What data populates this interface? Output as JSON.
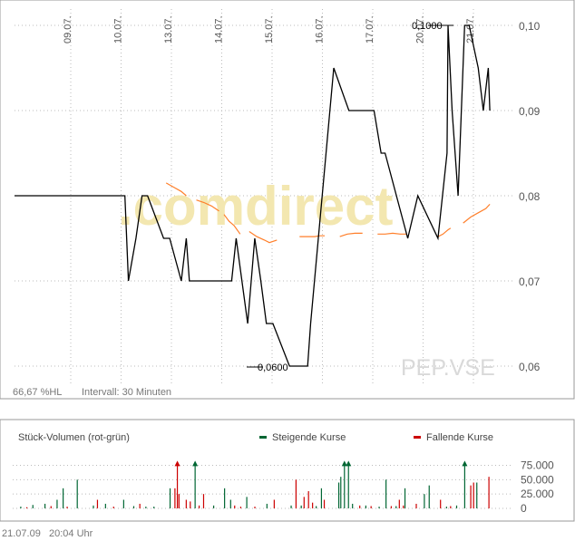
{
  "colors": {
    "price": "#000000",
    "average": "#ff7f2a",
    "volume_up": "#006633",
    "volume_down": "#cc0000",
    "grid": "#bbbbbb",
    "frame": "#999999",
    "watermark": "#e8e8e8",
    "watermark_accent": "#f5e6a0"
  },
  "watermark": {
    "brand": ".comdirect",
    "symbol": "PEP.VSE"
  },
  "footer": {
    "date": "21.07.09",
    "time": "20:04 Uhr"
  },
  "chart_data": [
    {
      "type": "line",
      "x_tick_labels": [
        "09.07.",
        "10.07.",
        "13.07.",
        "14.07.",
        "15.07.",
        "16.07.",
        "17.07.",
        "20.07.",
        "21.07."
      ],
      "y_tick_labels": [
        "0,10",
        "0,09",
        "0,08",
        "0,07",
        "0,06"
      ],
      "ylim": [
        0.06,
        0.1
      ],
      "grid": true,
      "max_label": "0,1000",
      "min_label": "0,0600",
      "info_left": "66,67 %HL",
      "info_interval": "Intervall: 30 Minuten",
      "series": [
        {
          "role": "price",
          "x": [
            0,
            1.65,
            2.13,
            2.2,
            2.35,
            2.47,
            2.58,
            2.9,
            3.02,
            3.25,
            3.35,
            3.41,
            3.53,
            3.65,
            3.83,
            4.25,
            4.34,
            4.57,
            4.71,
            4.83,
            4.94,
            5.07,
            5.4,
            5.55,
            5.6,
            5.76,
            5.82,
            6.28,
            6.58,
            6.88,
            7.04,
            7.08,
            7.22,
            7.3,
            7.75,
            7.95,
            8.35,
            8.53,
            8.55,
            8.63,
            8.75,
            8.88,
            8.97,
            9.15,
            9.25,
            9.35,
            9.38
          ],
          "y": [
            0.08,
            0.08,
            0.08,
            0.07,
            0.075,
            0.08,
            0.08,
            0.075,
            0.075,
            0.07,
            0.075,
            0.07,
            0.07,
            0.07,
            0.07,
            0.07,
            0.075,
            0.065,
            0.075,
            0.07,
            0.065,
            0.065,
            0.06,
            0.06,
            0.06,
            0.06,
            0.065,
            0.095,
            0.09,
            0.09,
            0.09,
            0.09,
            0.085,
            0.085,
            0.075,
            0.08,
            0.075,
            0.085,
            0.1,
            0.09,
            0.08,
            0.1,
            0.1,
            0.095,
            0.09,
            0.095,
            0.09
          ]
        },
        {
          "role": "average",
          "segments": [
            {
              "x": [
                2.95,
                3.1,
                3.25,
                3.35
              ],
              "y": [
                0.0815,
                0.081,
                0.0805,
                0.08
              ]
            },
            {
              "x": [
                3.55,
                3.7,
                3.85,
                4.0
              ],
              "y": [
                0.0795,
                0.0792,
                0.0788,
                0.0782
              ]
            },
            {
              "x": [
                4.1,
                4.2,
                4.3,
                4.42
              ],
              "y": [
                0.0778,
                0.077,
                0.0765,
                0.0755
              ]
            },
            {
              "x": [
                4.6,
                4.75,
                4.9,
                5.0,
                5.15
              ],
              "y": [
                0.0758,
                0.0752,
                0.0748,
                0.0745,
                0.0748
              ]
            },
            {
              "x": [
                5.6,
                5.75,
                5.9,
                6.0,
                6.1
              ],
              "y": [
                0.0752,
                0.0752,
                0.0752,
                0.0753,
                0.0753
              ]
            },
            {
              "x": [
                6.4,
                6.55,
                6.7,
                6.85
              ],
              "y": [
                0.0752,
                0.0755,
                0.0756,
                0.0756
              ]
            },
            {
              "x": [
                7.15,
                7.3,
                7.45,
                7.6,
                7.72
              ],
              "y": [
                0.0755,
                0.0755,
                0.0756,
                0.0755,
                0.0755
              ]
            },
            {
              "x": [
                8.35,
                8.45,
                8.55,
                8.6
              ],
              "y": [
                0.0752,
                0.0755,
                0.076,
                0.0762
              ]
            },
            {
              "x": [
                8.85,
                9.0,
                9.15,
                9.3,
                9.38
              ],
              "y": [
                0.0768,
                0.0775,
                0.078,
                0.0785,
                0.079
              ]
            }
          ]
        }
      ]
    },
    {
      "type": "bar",
      "title": "Stück-Volumen (rot-grün)",
      "legend": [
        {
          "name": "Steigende Kurse",
          "color": "#006633"
        },
        {
          "name": "Fallende Kurse",
          "color": "#cc0000"
        }
      ],
      "y_tick_labels": [
        "75.000",
        "50.000",
        "25.000",
        "0"
      ],
      "ylim": [
        0,
        90000
      ],
      "bars": [
        {
          "x": 0.2,
          "v": 3000,
          "d": "up"
        },
        {
          "x": 0.35,
          "v": 2000,
          "d": "down"
        },
        {
          "x": 0.5,
          "v": 6000,
          "d": "up"
        },
        {
          "x": 0.8,
          "v": 8000,
          "d": "up"
        },
        {
          "x": 0.95,
          "v": 4000,
          "d": "down"
        },
        {
          "x": 1.1,
          "v": 15000,
          "d": "up"
        },
        {
          "x": 1.25,
          "v": 35000,
          "d": "up"
        },
        {
          "x": 1.35,
          "v": 3000,
          "d": "down"
        },
        {
          "x": 1.6,
          "v": 50000,
          "d": "up"
        },
        {
          "x": 2.0,
          "v": 5000,
          "d": "up"
        },
        {
          "x": 2.1,
          "v": 15000,
          "d": "down"
        },
        {
          "x": 2.3,
          "v": 8000,
          "d": "up"
        },
        {
          "x": 2.5,
          "v": 3000,
          "d": "down"
        },
        {
          "x": 2.75,
          "v": 15000,
          "d": "up"
        },
        {
          "x": 3.0,
          "v": 4000,
          "d": "up"
        },
        {
          "x": 3.15,
          "v": 8000,
          "d": "down"
        },
        {
          "x": 3.3,
          "v": 3000,
          "d": "up"
        },
        {
          "x": 3.5,
          "v": 3000,
          "d": "up"
        },
        {
          "x": 3.9,
          "v": 35000,
          "d": "up"
        },
        {
          "x": 4.02,
          "v": 35000,
          "d": "down"
        },
        {
          "x": 4.08,
          "v": 80000,
          "d": "down"
        },
        {
          "x": 4.12,
          "v": 25000,
          "d": "down"
        },
        {
          "x": 4.3,
          "v": 15000,
          "d": "down"
        },
        {
          "x": 4.4,
          "v": 12000,
          "d": "down"
        },
        {
          "x": 4.52,
          "v": 80000,
          "d": "up"
        },
        {
          "x": 4.62,
          "v": 5000,
          "d": "down"
        },
        {
          "x": 4.73,
          "v": 25000,
          "d": "down"
        },
        {
          "x": 4.98,
          "v": 5000,
          "d": "up"
        },
        {
          "x": 5.25,
          "v": 35000,
          "d": "up"
        },
        {
          "x": 5.4,
          "v": 15000,
          "d": "up"
        },
        {
          "x": 5.5,
          "v": 5000,
          "d": "down"
        },
        {
          "x": 5.65,
          "v": 3000,
          "d": "down"
        },
        {
          "x": 5.8,
          "v": 20000,
          "d": "up"
        },
        {
          "x": 6.0,
          "v": 3000,
          "d": "down"
        },
        {
          "x": 6.3,
          "v": 8000,
          "d": "up"
        },
        {
          "x": 6.48,
          "v": 15000,
          "d": "down"
        },
        {
          "x": 6.9,
          "v": 5000,
          "d": "up"
        },
        {
          "x": 7.02,
          "v": 50000,
          "d": "down"
        },
        {
          "x": 7.15,
          "v": 5000,
          "d": "up"
        },
        {
          "x": 7.22,
          "v": 20000,
          "d": "down"
        },
        {
          "x": 7.33,
          "v": 30000,
          "d": "down"
        },
        {
          "x": 7.43,
          "v": 10000,
          "d": "down"
        },
        {
          "x": 7.52,
          "v": 4000,
          "d": "up"
        },
        {
          "x": 7.65,
          "v": 35000,
          "d": "up"
        },
        {
          "x": 7.72,
          "v": 15000,
          "d": "down"
        },
        {
          "x": 8.08,
          "v": 45000,
          "d": "up"
        },
        {
          "x": 8.13,
          "v": 55000,
          "d": "up"
        },
        {
          "x": 8.22,
          "v": 80000,
          "d": "up"
        },
        {
          "x": 8.32,
          "v": 80000,
          "d": "up"
        },
        {
          "x": 8.42,
          "v": 8000,
          "d": "up"
        },
        {
          "x": 8.6,
          "v": 5000,
          "d": "down"
        },
        {
          "x": 8.75,
          "v": 5000,
          "d": "up"
        },
        {
          "x": 8.88,
          "v": 4000,
          "d": "down"
        },
        {
          "x": 9.08,
          "v": 3000,
          "d": "up"
        },
        {
          "x": 9.25,
          "v": 50000,
          "d": "up"
        },
        {
          "x": 9.38,
          "v": 4000,
          "d": "down"
        },
        {
          "x": 9.5,
          "v": 4000,
          "d": "up"
        },
        {
          "x": 9.58,
          "v": 15000,
          "d": "down"
        },
        {
          "x": 9.68,
          "v": 5000,
          "d": "down"
        },
        {
          "x": 9.72,
          "v": 35000,
          "d": "up"
        },
        {
          "x": 10.0,
          "v": 8000,
          "d": "down"
        },
        {
          "x": 10.2,
          "v": 25000,
          "d": "up"
        },
        {
          "x": 10.32,
          "v": 40000,
          "d": "up"
        },
        {
          "x": 10.6,
          "v": 15000,
          "d": "down"
        },
        {
          "x": 10.75,
          "v": 3000,
          "d": "up"
        },
        {
          "x": 10.85,
          "v": 4000,
          "d": "down"
        },
        {
          "x": 11.0,
          "v": 5000,
          "d": "up"
        },
        {
          "x": 11.2,
          "v": 80000,
          "d": "up"
        },
        {
          "x": 11.35,
          "v": 40000,
          "d": "down"
        },
        {
          "x": 11.42,
          "v": 45000,
          "d": "down"
        },
        {
          "x": 11.5,
          "v": 45000,
          "d": "up"
        },
        {
          "x": 11.8,
          "v": 55000,
          "d": "down"
        }
      ]
    }
  ]
}
